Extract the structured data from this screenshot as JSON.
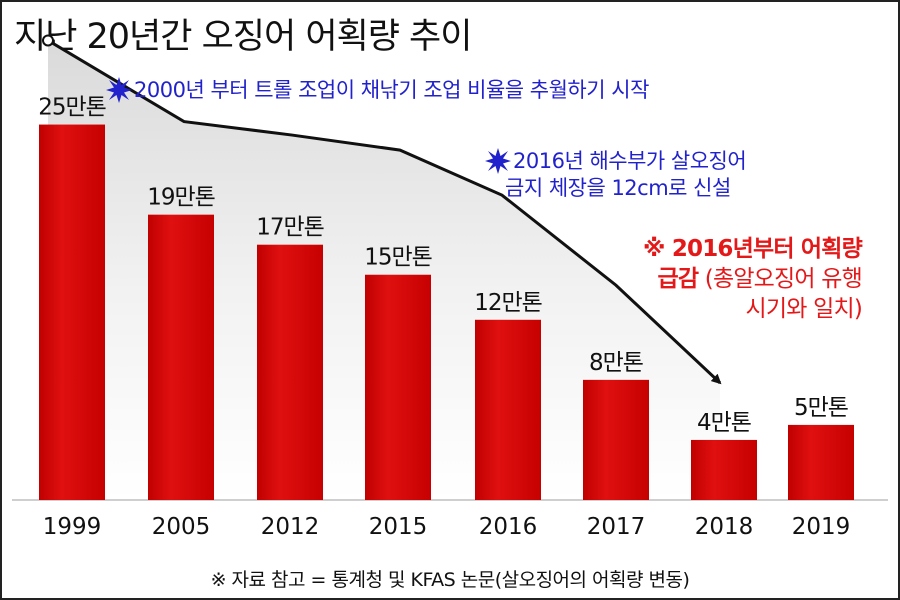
{
  "title": "지난 20년간 오징어 어획량 추이",
  "annotations": {
    "note1": "2000년 부터 트롤 조업이 채낚기 조업 비율을 추월하기 시작",
    "note2_line1": "2016년 해수부가 살오징어",
    "note2_line2": "금지 체장을 12cm로 신설",
    "note3_line1": "※ 2016년부터 어획량",
    "note3_line2_bold": "급감",
    "note3_line2_rest": " (총알오징어 유행",
    "note3_line3": "시기와 일치)"
  },
  "source": "※ 자료 참고 = 통계청 및 KFAS 논문(살오징어의 어획량 변동)",
  "colors": {
    "bar": "#d40000",
    "bar_highlight": "#ff4040",
    "annotation_blue": "#2222cc",
    "annotation_red": "#e41818",
    "trend_line": "#111111"
  },
  "icons": {
    "burst": "starburst-icon",
    "start_marker": "circle-marker-icon",
    "trend_arrow": "arrow-icon"
  },
  "chart_data": {
    "type": "bar",
    "categories": [
      "1999",
      "2005",
      "2012",
      "2015",
      "2016",
      "2017",
      "2018",
      "2019"
    ],
    "values": [
      25,
      19,
      17,
      15,
      12,
      8,
      4,
      5
    ],
    "data_labels": [
      "25만톤",
      "19만톤",
      "17만톤",
      "15만톤",
      "12만톤",
      "8만톤",
      "4만톤",
      "5만톤"
    ],
    "unit": "만톤",
    "title": "지난 20년간 오징어 어획량 추이",
    "xlabel": "",
    "ylabel": "",
    "ylim": [
      0,
      28.5
    ],
    "grid": false,
    "legend": "none",
    "trend_line": {
      "description": "decline trend arrow from 1999 to 2018",
      "values": [
        30.6,
        25.2,
        24.3,
        23.3,
        20.3,
        14.3,
        7.8
      ]
    }
  }
}
